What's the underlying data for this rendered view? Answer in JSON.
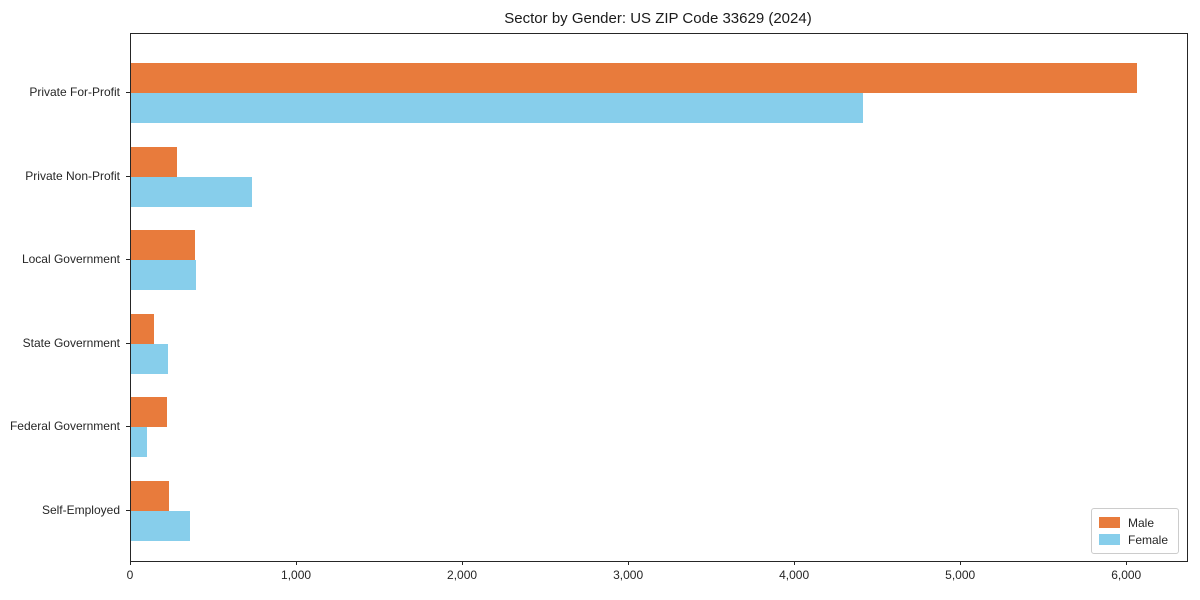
{
  "title": "Sector by Gender: US ZIP Code 33629 (2024)",
  "colors": {
    "male": "#e87b3c",
    "female": "#87ceeb",
    "axis": "#262626",
    "text": "#1a1a1a",
    "legend_border": "#cccccc"
  },
  "chart_data": {
    "type": "bar",
    "orientation": "horizontal",
    "title": "Sector by Gender: US ZIP Code 33629 (2024)",
    "categories": [
      "Private For-Profit",
      "Private Non-Profit",
      "Local Government",
      "State Government",
      "Federal Government",
      "Self-Employed"
    ],
    "series": [
      {
        "name": "Male",
        "color": "#e87b3c",
        "values": [
          6060,
          280,
          385,
          140,
          215,
          230
        ]
      },
      {
        "name": "Female",
        "color": "#87ceeb",
        "values": [
          4410,
          730,
          390,
          225,
          95,
          355
        ]
      }
    ],
    "xlabel": "",
    "ylabel": "",
    "xlim": [
      0,
      6360
    ],
    "xticks": [
      0,
      1000,
      2000,
      3000,
      4000,
      5000,
      6000
    ],
    "xtick_labels": [
      "0",
      "1,000",
      "2,000",
      "3,000",
      "4,000",
      "5,000",
      "6,000"
    ],
    "grid": false,
    "legend_position": "lower right",
    "legend_items": [
      {
        "label": "Male"
      },
      {
        "label": "Female"
      }
    ]
  }
}
